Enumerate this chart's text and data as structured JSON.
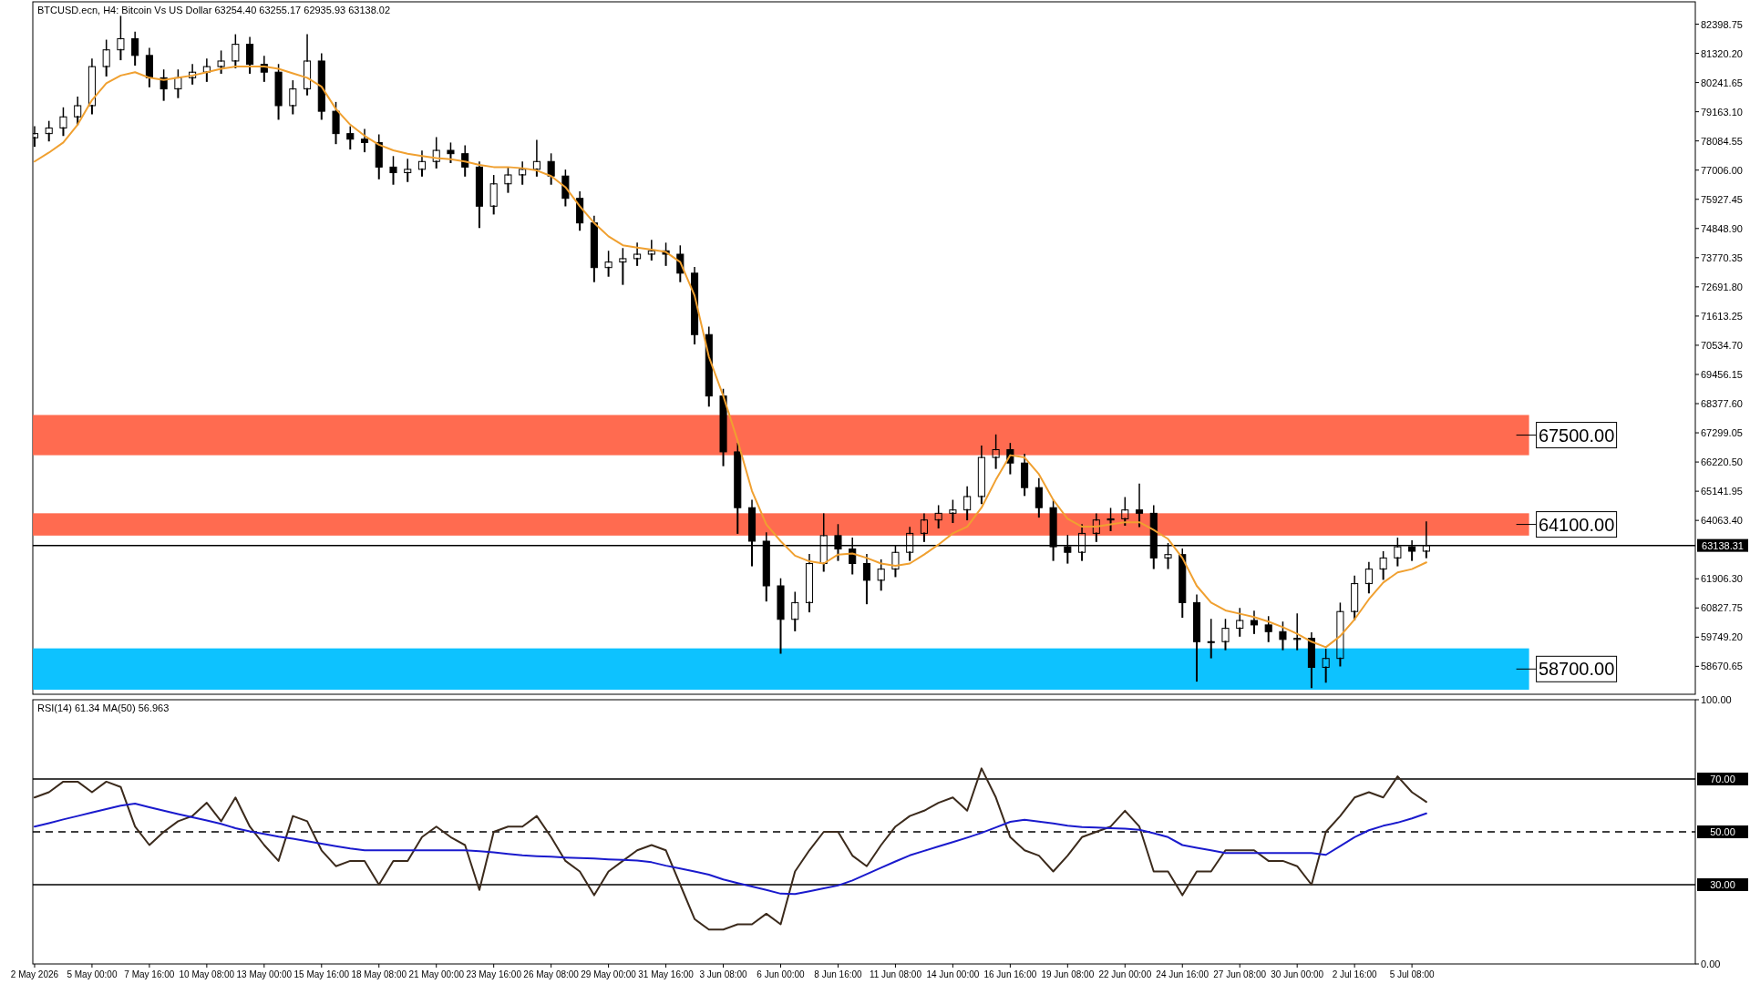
{
  "chart_data": [
    {
      "type": "candlestick",
      "title": "BTCUSD.ecn, H4:  Bitcoin Vs US Dollar  63254.40 63255.17 62935.93 63138.02",
      "tick_labels": "y",
      "xlim": [
        "2026-05-02T06:00",
        "2026-07-18T12:00"
      ],
      "ylim": [
        57639,
        83224
      ],
      "yticks": [
        {
          "value": 82398.75,
          "label": "82398.75"
        },
        {
          "value": 81320.2,
          "label": "81320.20"
        },
        {
          "value": 80241.65,
          "label": "80241.65"
        },
        {
          "value": 79163.1,
          "label": "79163.10"
        },
        {
          "value": 78084.55,
          "label": "78084.55"
        },
        {
          "value": 77006,
          "label": "77006.00"
        },
        {
          "value": 75927.45,
          "label": "75927.45"
        },
        {
          "value": 74848.9,
          "label": "74848.90"
        },
        {
          "value": 73770.35,
          "label": "73770.35"
        },
        {
          "value": 72691.8,
          "label": "72691.80"
        },
        {
          "value": 71613.25,
          "label": "71613.25"
        },
        {
          "value": 70534.7,
          "label": "70534.70"
        },
        {
          "value": 69456.15,
          "label": "69456.15"
        },
        {
          "value": 68377.6,
          "label": "68377.60"
        },
        {
          "value": 67299.05,
          "label": "67299.05"
        },
        {
          "value": 66220.5,
          "label": "66220.50"
        },
        {
          "value": 65141.95,
          "label": "65141.95"
        },
        {
          "value": 64063.4,
          "label": "64063.40"
        },
        {
          "value": 61906.3,
          "label": "61906.30"
        },
        {
          "value": 60827.75,
          "label": "60827.75"
        },
        {
          "value": 59749.2,
          "label": "59749.20"
        },
        {
          "value": 58670.65,
          "label": "58670.65"
        }
      ],
      "x": [
        "2026-05-02T08:00",
        "2026-05-03T00:00",
        "2026-05-03T16:00",
        "2026-05-04T08:00",
        "2026-05-05T00:00",
        "2026-05-05T16:00",
        "2026-05-06T08:00",
        "2026-05-07T00:00",
        "2026-05-07T16:00",
        "2026-05-08T08:00",
        "2026-05-09T00:00",
        "2026-05-09T16:00",
        "2026-05-10T08:00",
        "2026-05-11T00:00",
        "2026-05-11T16:00",
        "2026-05-12T08:00",
        "2026-05-13T00:00",
        "2026-05-13T16:00",
        "2026-05-14T08:00",
        "2026-05-15T00:00",
        "2026-05-15T16:00",
        "2026-05-16T08:00",
        "2026-05-17T00:00",
        "2026-05-17T16:00",
        "2026-05-18T08:00",
        "2026-05-19T00:00",
        "2026-05-19T16:00",
        "2026-05-20T08:00",
        "2026-05-21T00:00",
        "2026-05-21T16:00",
        "2026-05-22T08:00",
        "2026-05-23T00:00",
        "2026-05-23T16:00",
        "2026-05-24T08:00",
        "2026-05-25T00:00",
        "2026-05-25T16:00",
        "2026-05-26T08:00",
        "2026-05-27T00:00",
        "2026-05-27T16:00",
        "2026-05-28T08:00",
        "2026-05-29T00:00",
        "2026-05-29T16:00",
        "2026-05-30T08:00",
        "2026-05-31T00:00",
        "2026-05-31T16:00",
        "2026-06-01T08:00",
        "2026-06-02T00:00",
        "2026-06-02T16:00",
        "2026-06-03T08:00",
        "2026-06-04T00:00",
        "2026-06-04T16:00",
        "2026-06-05T08:00",
        "2026-06-06T00:00",
        "2026-06-06T16:00",
        "2026-06-07T08:00",
        "2026-06-08T00:00",
        "2026-06-08T16:00",
        "2026-06-09T08:00",
        "2026-06-10T00:00",
        "2026-06-10T16:00",
        "2026-06-11T08:00",
        "2026-06-12T00:00",
        "2026-06-12T16:00",
        "2026-06-13T08:00",
        "2026-06-14T00:00",
        "2026-06-14T16:00",
        "2026-06-15T08:00",
        "2026-06-16T00:00",
        "2026-06-16T16:00",
        "2026-06-17T08:00",
        "2026-06-18T00:00",
        "2026-06-18T16:00",
        "2026-06-19T08:00",
        "2026-06-20T00:00",
        "2026-06-20T16:00",
        "2026-06-21T08:00",
        "2026-06-22T00:00",
        "2026-06-22T16:00",
        "2026-06-23T08:00",
        "2026-06-24T00:00",
        "2026-06-24T16:00",
        "2026-06-25T08:00",
        "2026-06-26T00:00",
        "2026-06-26T16:00",
        "2026-06-27T08:00",
        "2026-06-28T00:00",
        "2026-06-28T16:00",
        "2026-06-29T08:00",
        "2026-06-30T00:00",
        "2026-06-30T16:00",
        "2026-07-01T08:00",
        "2026-07-02T00:00",
        "2026-07-02T16:00",
        "2026-07-03T08:00",
        "2026-07-04T00:00",
        "2026-07-04T16:00",
        "2026-07-05T08:00",
        "2026-07-06T00:00"
      ],
      "ohlc": [
        [
          78200,
          78600,
          77900,
          78355
        ],
        [
          78355,
          78800,
          78100,
          78562
        ],
        [
          78562,
          79300,
          78300,
          78974
        ],
        [
          78974,
          79700,
          78700,
          79387
        ],
        [
          79387,
          81100,
          79100,
          80831
        ],
        [
          80831,
          81800,
          80500,
          81450
        ],
        [
          81450,
          82680,
          81100,
          81862
        ],
        [
          81862,
          82100,
          80900,
          81243
        ],
        [
          81243,
          81500,
          80100,
          80418
        ],
        [
          80418,
          80700,
          79600,
          80006
        ],
        [
          80006,
          80700,
          79700,
          80418
        ],
        [
          80418,
          80900,
          80200,
          80625
        ],
        [
          80625,
          81100,
          80300,
          80831
        ],
        [
          80831,
          81400,
          80600,
          81037
        ],
        [
          81037,
          82000,
          80800,
          81656
        ],
        [
          81656,
          81900,
          80600,
          80913
        ],
        [
          80913,
          81200,
          80300,
          80625
        ],
        [
          80625,
          80900,
          78900,
          79387
        ],
        [
          79387,
          80300,
          79100,
          80006
        ],
        [
          80006,
          82000,
          79800,
          81037
        ],
        [
          81037,
          81300,
          78900,
          79180
        ],
        [
          79180,
          79500,
          78000,
          78355
        ],
        [
          78355,
          78600,
          77800,
          78149
        ],
        [
          78149,
          78500,
          77700,
          78025
        ],
        [
          78025,
          78300,
          76700,
          77118
        ],
        [
          77118,
          77500,
          76500,
          76911
        ],
        [
          76911,
          77400,
          76600,
          77035
        ],
        [
          77035,
          77700,
          76800,
          77324
        ],
        [
          77324,
          78200,
          77100,
          77736
        ],
        [
          77736,
          78000,
          77300,
          77613
        ],
        [
          77613,
          77900,
          76800,
          77118
        ],
        [
          77118,
          77300,
          74900,
          75673
        ],
        [
          75673,
          76800,
          75400,
          76499
        ],
        [
          76499,
          77100,
          76200,
          76829
        ],
        [
          76829,
          77300,
          76500,
          77035
        ],
        [
          77035,
          78100,
          76800,
          77324
        ],
        [
          77324,
          77600,
          76500,
          76787
        ],
        [
          76787,
          77000,
          75700,
          75962
        ],
        [
          75962,
          76200,
          74800,
          75054
        ],
        [
          75054,
          75300,
          72900,
          73404
        ],
        [
          73404,
          74000,
          73100,
          73610
        ],
        [
          73610,
          74100,
          72800,
          73734
        ],
        [
          73734,
          74300,
          73500,
          73899
        ],
        [
          73899,
          74400,
          73700,
          74023
        ],
        [
          74023,
          74300,
          73500,
          73899
        ],
        [
          73899,
          74200,
          72900,
          73198
        ],
        [
          73198,
          73400,
          70600,
          70929
        ],
        [
          70929,
          71200,
          68300,
          68659
        ],
        [
          68659,
          68900,
          66100,
          66596
        ],
        [
          66596,
          66900,
          63600,
          64533
        ],
        [
          64533,
          64800,
          62400,
          63295
        ],
        [
          63295,
          63600,
          61100,
          61645
        ],
        [
          61645,
          61900,
          59170,
          60407
        ],
        [
          60407,
          61400,
          60000,
          61026
        ],
        [
          61026,
          62800,
          60700,
          62470
        ],
        [
          62470,
          64300,
          62200,
          63502
        ],
        [
          63502,
          63900,
          62600,
          63007
        ],
        [
          63007,
          63400,
          62100,
          62470
        ],
        [
          62470,
          62800,
          61000,
          61851
        ],
        [
          61851,
          62600,
          61500,
          62264
        ],
        [
          62264,
          63100,
          62000,
          62883
        ],
        [
          62883,
          63800,
          62600,
          63584
        ],
        [
          63584,
          64300,
          63300,
          64079
        ],
        [
          64079,
          64600,
          63800,
          64326
        ],
        [
          64326,
          64800,
          64000,
          64450
        ],
        [
          64450,
          65300,
          64100,
          64945
        ],
        [
          64945,
          66800,
          64700,
          66389
        ],
        [
          66389,
          67215,
          66000,
          66678
        ],
        [
          66678,
          66900,
          65800,
          66183
        ],
        [
          66183,
          66500,
          65000,
          65275
        ],
        [
          65275,
          65600,
          64200,
          64533
        ],
        [
          64533,
          64800,
          62600,
          63089
        ],
        [
          63089,
          63500,
          62500,
          62883
        ],
        [
          62883,
          63900,
          62600,
          63584
        ],
        [
          63584,
          64300,
          63300,
          64079
        ],
        [
          64079,
          64500,
          63700,
          64120
        ],
        [
          64120,
          64900,
          63900,
          64450
        ],
        [
          64450,
          65400,
          63850,
          64326
        ],
        [
          64326,
          64600,
          62300,
          62676
        ],
        [
          62676,
          63200,
          62300,
          62800
        ],
        [
          62800,
          63000,
          60500,
          61026
        ],
        [
          61026,
          61300,
          58140,
          59582
        ],
        [
          59582,
          60400,
          59000,
          59582
        ],
        [
          59582,
          60400,
          59300,
          60077
        ],
        [
          60077,
          60800,
          59800,
          60366
        ],
        [
          60366,
          60700,
          59900,
          60201
        ],
        [
          60201,
          60500,
          59600,
          59953
        ],
        [
          59953,
          60300,
          59300,
          59664
        ],
        [
          59664,
          60600,
          59300,
          59706
        ],
        [
          59706,
          59900,
          57900,
          58633
        ],
        [
          58633,
          59300,
          58100,
          58963
        ],
        [
          58963,
          61000,
          58700,
          60696
        ],
        [
          60696,
          62000,
          60400,
          61727
        ],
        [
          61727,
          62500,
          61400,
          62264
        ],
        [
          62264,
          62900,
          61900,
          62676
        ],
        [
          62676,
          63400,
          62400,
          63089
        ],
        [
          63089,
          63300,
          62600,
          62924
        ],
        [
          62924,
          64000,
          62700,
          63138.02
        ]
      ],
      "series": [
        {
          "type": "line",
          "color": "#f0a030",
          "values": [
            77324,
            77654,
            78025,
            78685,
            79593,
            80212,
            80501,
            80625,
            80418,
            80336,
            80418,
            80501,
            80625,
            80748,
            80831,
            80831,
            80831,
            80748,
            80583,
            80418,
            80088,
            79263,
            78685,
            78273,
            77943,
            77736,
            77613,
            77530,
            77448,
            77406,
            77324,
            77200,
            77118,
            77118,
            77076,
            76994,
            76787,
            76375,
            75673,
            75054,
            74559,
            74229,
            74146,
            74064,
            73981,
            73610,
            72372,
            70103,
            68659,
            67009,
            65152,
            63914,
            63295,
            62759,
            62552,
            62470,
            62800,
            62841,
            62676,
            62470,
            62387,
            62470,
            62800,
            63171,
            63584,
            63832,
            64533,
            65564,
            66472,
            66389,
            65770,
            64822,
            64120,
            63832,
            63832,
            63914,
            63997,
            63997,
            63708,
            63378,
            62676,
            61645,
            61026,
            60737,
            60614,
            60490,
            60325,
            60119,
            59871,
            59582,
            59376,
            59788,
            60407,
            61150,
            61769,
            62140,
            62264,
            62511
          ]
        }
      ],
      "ref_lines": [
        {
          "axis": "y",
          "value": 63138.31,
          "label": "63138.31",
          "color": "#000000"
        }
      ],
      "bands": [
        {
          "axis": "y",
          "from": 66472,
          "to": 67958,
          "label": "67500.00",
          "color": "#ff6347"
        },
        {
          "axis": "y",
          "from": 63502,
          "to": 64327,
          "label": "64100.00",
          "color": "#ff6347"
        },
        {
          "axis": "y",
          "from": 57808,
          "to": 59335,
          "label": "58700.00",
          "color": "#00bfff"
        }
      ]
    },
    {
      "type": "line",
      "title": "RSI(14) 61.34 MA(50) 56.963",
      "xlim": [
        "2026-05-02T06:00",
        "2026-07-18T12:00"
      ],
      "xticks": [
        {
          "value": "2026-05-02T08:00",
          "label": "2 May 2026"
        },
        {
          "value": "2026-05-05T00:00",
          "label": "5 May 00:00"
        },
        {
          "value": "2026-05-07T16:00",
          "label": "7 May 16:00"
        },
        {
          "value": "2026-05-10T08:00",
          "label": "10 May 08:00"
        },
        {
          "value": "2026-05-13T00:00",
          "label": "13 May 00:00"
        },
        {
          "value": "2026-05-15T16:00",
          "label": "15 May 16:00"
        },
        {
          "value": "2026-05-18T08:00",
          "label": "18 May 08:00"
        },
        {
          "value": "2026-05-21T00:00",
          "label": "21 May 00:00"
        },
        {
          "value": "2026-05-23T16:00",
          "label": "23 May 16:00"
        },
        {
          "value": "2026-05-26T08:00",
          "label": "26 May 08:00"
        },
        {
          "value": "2026-05-29T00:00",
          "label": "29 May 00:00"
        },
        {
          "value": "2026-05-31T16:00",
          "label": "31 May 16:00"
        },
        {
          "value": "2026-06-03T08:00",
          "label": "3 Jun 08:00"
        },
        {
          "value": "2026-06-06T00:00",
          "label": "6 Jun 00:00"
        },
        {
          "value": "2026-06-08T16:00",
          "label": "8 Jun 16:00"
        },
        {
          "value": "2026-06-11T08:00",
          "label": "11 Jun 08:00"
        },
        {
          "value": "2026-06-14T00:00",
          "label": "14 Jun 00:00"
        },
        {
          "value": "2026-06-16T16:00",
          "label": "16 Jun 16:00"
        },
        {
          "value": "2026-06-19T08:00",
          "label": "19 Jun 08:00"
        },
        {
          "value": "2026-06-22T00:00",
          "label": "22 Jun 00:00"
        },
        {
          "value": "2026-06-24T16:00",
          "label": "24 Jun 16:00"
        },
        {
          "value": "2026-06-27T08:00",
          "label": "27 Jun 08:00"
        },
        {
          "value": "2026-06-30T00:00",
          "label": "30 Jun 00:00"
        },
        {
          "value": "2026-07-02T16:00",
          "label": "2 Jul 16:00"
        },
        {
          "value": "2026-07-05T08:00",
          "label": "5 Jul 08:00"
        }
      ],
      "ylim": [
        0,
        100
      ],
      "yticks": [
        {
          "value": 100,
          "label": "100.00"
        },
        {
          "value": 0,
          "label": "0.00"
        }
      ],
      "x": [
        "2026-05-02T08:00",
        "2026-05-03T00:00",
        "2026-05-03T16:00",
        "2026-05-04T08:00",
        "2026-05-05T00:00",
        "2026-05-05T16:00",
        "2026-05-06T08:00",
        "2026-05-07T00:00",
        "2026-05-07T16:00",
        "2026-05-08T08:00",
        "2026-05-09T00:00",
        "2026-05-09T16:00",
        "2026-05-10T08:00",
        "2026-05-11T00:00",
        "2026-05-11T16:00",
        "2026-05-12T08:00",
        "2026-05-13T00:00",
        "2026-05-13T16:00",
        "2026-05-14T08:00",
        "2026-05-15T00:00",
        "2026-05-15T16:00",
        "2026-05-16T08:00",
        "2026-05-17T00:00",
        "2026-05-17T16:00",
        "2026-05-18T08:00",
        "2026-05-19T00:00",
        "2026-05-19T16:00",
        "2026-05-20T08:00",
        "2026-05-21T00:00",
        "2026-05-21T16:00",
        "2026-05-22T08:00",
        "2026-05-23T00:00",
        "2026-05-23T16:00",
        "2026-05-24T08:00",
        "2026-05-25T00:00",
        "2026-05-25T16:00",
        "2026-05-26T08:00",
        "2026-05-27T00:00",
        "2026-05-27T16:00",
        "2026-05-28T08:00",
        "2026-05-29T00:00",
        "2026-05-29T16:00",
        "2026-05-30T08:00",
        "2026-05-31T00:00",
        "2026-05-31T16:00",
        "2026-06-01T08:00",
        "2026-06-02T00:00",
        "2026-06-02T16:00",
        "2026-06-03T08:00",
        "2026-06-04T00:00",
        "2026-06-04T16:00",
        "2026-06-05T08:00",
        "2026-06-06T00:00",
        "2026-06-06T16:00",
        "2026-06-07T08:00",
        "2026-06-08T00:00",
        "2026-06-08T16:00",
        "2026-06-09T08:00",
        "2026-06-10T00:00",
        "2026-06-10T16:00",
        "2026-06-11T08:00",
        "2026-06-12T00:00",
        "2026-06-12T16:00",
        "2026-06-13T08:00",
        "2026-06-14T00:00",
        "2026-06-14T16:00",
        "2026-06-15T08:00",
        "2026-06-16T00:00",
        "2026-06-16T16:00",
        "2026-06-17T08:00",
        "2026-06-18T00:00",
        "2026-06-18T16:00",
        "2026-06-19T08:00",
        "2026-06-20T00:00",
        "2026-06-20T16:00",
        "2026-06-21T08:00",
        "2026-06-22T00:00",
        "2026-06-22T16:00",
        "2026-06-23T08:00",
        "2026-06-24T00:00",
        "2026-06-24T16:00",
        "2026-06-25T08:00",
        "2026-06-26T00:00",
        "2026-06-26T16:00",
        "2026-06-27T08:00",
        "2026-06-28T00:00",
        "2026-06-28T16:00",
        "2026-06-29T08:00",
        "2026-06-30T00:00",
        "2026-06-30T16:00",
        "2026-07-01T08:00",
        "2026-07-02T00:00",
        "2026-07-02T16:00",
        "2026-07-03T08:00",
        "2026-07-04T00:00",
        "2026-07-04T16:00",
        "2026-07-05T08:00",
        "2026-07-06T00:00"
      ],
      "series": [
        {
          "color": "#3b2a1c",
          "values": [
            63,
            65,
            69,
            69,
            65,
            69,
            67,
            52,
            45,
            50,
            54,
            56,
            61,
            54,
            63,
            52,
            45,
            39,
            56,
            54,
            43,
            37,
            39,
            39,
            30,
            39,
            39,
            48,
            52,
            48,
            45,
            28,
            50,
            52,
            52,
            56,
            48,
            39,
            35,
            26,
            35,
            39,
            43,
            45,
            43,
            30,
            17,
            13,
            13,
            15,
            15,
            19,
            15,
            35,
            43,
            50,
            50,
            41,
            37,
            45,
            52,
            56,
            58,
            61,
            63,
            58,
            74,
            63,
            48,
            43,
            41,
            35,
            41,
            48,
            50,
            52,
            58,
            52,
            35,
            35,
            26,
            35,
            35,
            43,
            43,
            43,
            39,
            39,
            37,
            30,
            50,
            56,
            63,
            65,
            63,
            71,
            65,
            61.34
          ]
        },
        {
          "color": "#1a1acd",
          "values": [
            52,
            53.3,
            54.7,
            56,
            57.3,
            58.6,
            59.9,
            60.7,
            59.3,
            58,
            56.7,
            55.5,
            54.3,
            53,
            51.4,
            50.2,
            49.2,
            48.2,
            47.4,
            46.5,
            45.5,
            44.6,
            43.7,
            43,
            43,
            43,
            43,
            43,
            43,
            43,
            43,
            42.7,
            42.2,
            41.6,
            41.1,
            40.8,
            40.6,
            40.3,
            40.1,
            39.9,
            39.6,
            39.4,
            39.1,
            38.5,
            37.2,
            36.1,
            35,
            33.8,
            32,
            30.6,
            29.3,
            28,
            26.6,
            26.5,
            27.5,
            28.6,
            29.7,
            31.6,
            34,
            36.4,
            38.8,
            41.1,
            42.8,
            44.5,
            46.1,
            47.8,
            49.6,
            51.7,
            53.8,
            54.6,
            53.9,
            53.2,
            52.3,
            51.8,
            51.6,
            51.4,
            51.2,
            50.8,
            49.5,
            48,
            45,
            44,
            43,
            42,
            42,
            42,
            42,
            42,
            42,
            42,
            41.3,
            44.6,
            48,
            50.6,
            52.3,
            53.5,
            55.1,
            56.963
          ]
        }
      ],
      "ref_lines": [
        {
          "axis": "y",
          "value": 70,
          "label": "70.00",
          "color": "#000000"
        },
        {
          "axis": "y",
          "value": 50,
          "label": "50.00",
          "color": "#000000",
          "line_style": "dashed"
        },
        {
          "axis": "y",
          "value": 30,
          "label": "30.00",
          "color": "#000000"
        }
      ]
    }
  ]
}
